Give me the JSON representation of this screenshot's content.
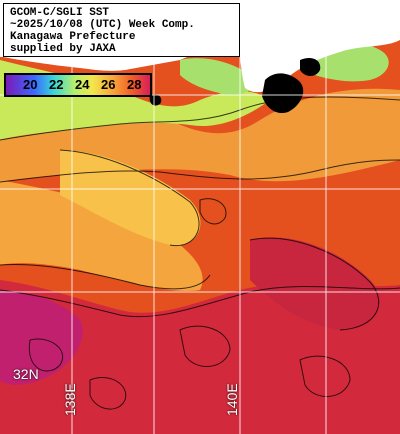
{
  "title": {
    "line1": "GCOM-C/SGLI SST",
    "line2": "~2025/10/08 (UTC) Week Comp.",
    "line3": "Kanagawa Prefecture",
    "line4": "supplied by JAXA"
  },
  "colorbar": {
    "ticks": [
      "20",
      "22",
      "24",
      "26",
      "28"
    ],
    "tick_colors": [
      "#000000",
      "#000000",
      "#000000",
      "#000000",
      "#000000"
    ]
  },
  "grid": {
    "lat_label": "32N",
    "lon_labels": [
      "138E",
      "140E"
    ]
  },
  "colors": {
    "land": "#ffffff",
    "cloud_mask": "#000000",
    "warm": "#e4501e",
    "hot": "#c8206a",
    "cool": "#f3b34a",
    "cold": "#a7e06d"
  }
}
